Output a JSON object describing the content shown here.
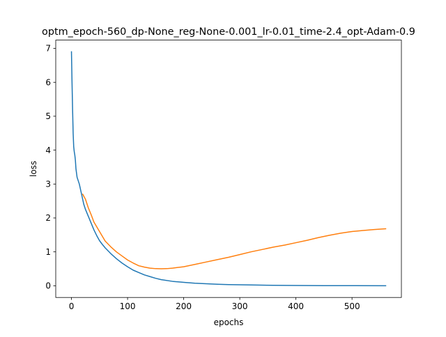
{
  "chart_data": {
    "type": "line",
    "title": "optm_epoch-560_dp-None_reg-None-0.001_lr-0.01_time-2.4_opt-Adam-0.9",
    "xlabel": "epochs",
    "ylabel": "loss",
    "xlim": [
      -28,
      588
    ],
    "ylim": [
      -0.345,
      7.245
    ],
    "xticks": [
      0,
      100,
      200,
      300,
      400,
      500
    ],
    "xtick_labels": [
      "0",
      "100",
      "200",
      "300",
      "400",
      "500"
    ],
    "yticks": [
      0,
      1,
      2,
      3,
      4,
      5,
      6,
      7
    ],
    "ytick_labels": [
      "0",
      "1",
      "2",
      "3",
      "4",
      "5",
      "6",
      "7"
    ],
    "grid": false,
    "series": [
      {
        "color": "#1f77b4",
        "x": [
          0,
          1,
          2,
          3,
          4,
          5,
          6,
          7,
          8,
          10,
          12,
          14,
          16,
          18,
          20,
          22,
          25,
          30,
          35,
          40,
          45,
          50,
          55,
          60,
          70,
          80,
          90,
          100,
          110,
          120,
          130,
          140,
          150,
          160,
          180,
          200,
          220,
          240,
          260,
          280,
          300,
          330,
          360,
          400,
          450,
          500,
          560
        ],
        "y": [
          6.9,
          6.0,
          5.2,
          4.5,
          4.1,
          3.95,
          3.85,
          3.7,
          3.45,
          3.2,
          3.1,
          3.0,
          2.85,
          2.7,
          2.55,
          2.4,
          2.25,
          2.05,
          1.85,
          1.65,
          1.48,
          1.33,
          1.22,
          1.12,
          0.95,
          0.8,
          0.67,
          0.56,
          0.46,
          0.39,
          0.32,
          0.27,
          0.22,
          0.18,
          0.13,
          0.1,
          0.075,
          0.06,
          0.045,
          0.035,
          0.028,
          0.02,
          0.014,
          0.008,
          0.004,
          0.002,
          0.001
        ]
      },
      {
        "color": "#ff7f0e",
        "x": [
          20,
          25,
          30,
          35,
          40,
          50,
          60,
          70,
          80,
          90,
          100,
          110,
          120,
          130,
          140,
          150,
          160,
          170,
          180,
          200,
          220,
          240,
          260,
          280,
          300,
          320,
          340,
          360,
          380,
          400,
          420,
          440,
          460,
          480,
          500,
          520,
          540,
          560
        ],
        "y": [
          2.7,
          2.55,
          2.3,
          2.1,
          1.88,
          1.6,
          1.32,
          1.15,
          1.0,
          0.88,
          0.76,
          0.67,
          0.59,
          0.55,
          0.52,
          0.505,
          0.5,
          0.505,
          0.52,
          0.56,
          0.63,
          0.7,
          0.77,
          0.84,
          0.92,
          1.0,
          1.07,
          1.14,
          1.2,
          1.27,
          1.34,
          1.42,
          1.49,
          1.55,
          1.6,
          1.63,
          1.66,
          1.68
        ]
      }
    ]
  }
}
